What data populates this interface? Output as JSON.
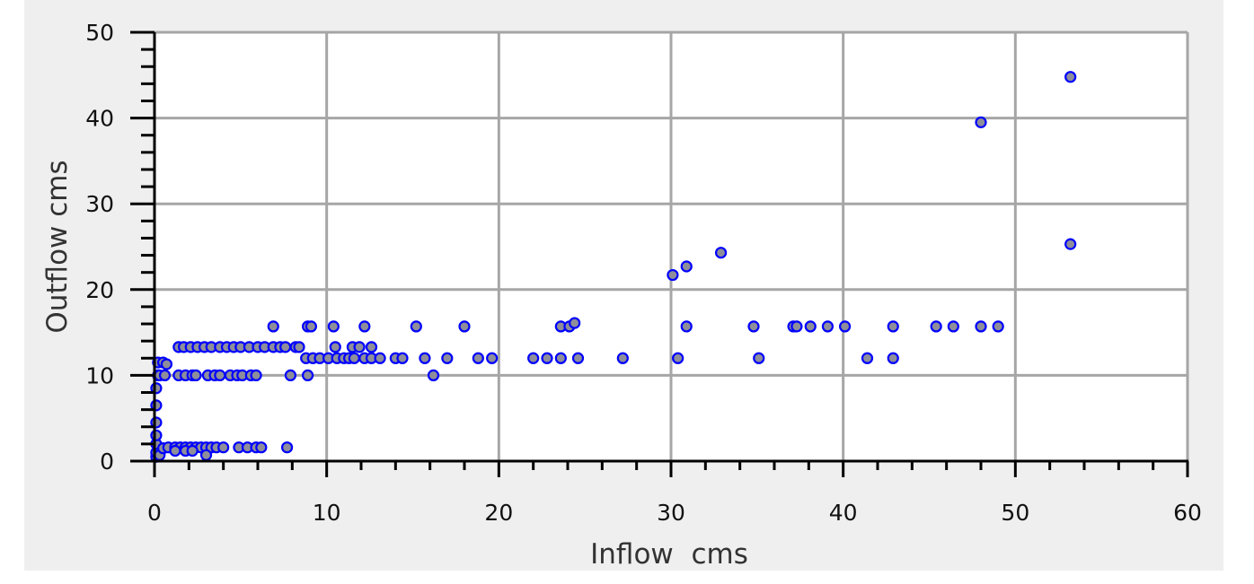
{
  "chart_data": {
    "type": "scatter",
    "title": "",
    "xlabel": "Inflow  cms",
    "ylabel": "Outflow cms",
    "xlim": [
      0,
      60
    ],
    "ylim": [
      0,
      50
    ],
    "x_ticks": [
      "0",
      "10",
      "20",
      "30",
      "40",
      "50",
      "60"
    ],
    "y_ticks": [
      "0",
      "10",
      "20",
      "30",
      "40",
      "50"
    ],
    "x_minor_step": 2,
    "y_minor_step": 2,
    "grid": true,
    "legend": "none",
    "marker_fill": "#8e8e9a",
    "marker_edge": "#0000ff",
    "points": [
      [
        0.1,
        0.5
      ],
      [
        0.1,
        1.0
      ],
      [
        0.1,
        2.0
      ],
      [
        0.1,
        3.0
      ],
      [
        0.1,
        4.5
      ],
      [
        0.1,
        6.5
      ],
      [
        0.1,
        8.5
      ],
      [
        0.2,
        10.0
      ],
      [
        0.2,
        11.5
      ],
      [
        0.5,
        11.5
      ],
      [
        0.7,
        11.3
      ],
      [
        0.3,
        0.7
      ],
      [
        0.5,
        1.5
      ],
      [
        0.8,
        1.6
      ],
      [
        1.2,
        1.6
      ],
      [
        1.5,
        1.6
      ],
      [
        1.8,
        1.6
      ],
      [
        2.1,
        1.6
      ],
      [
        2.4,
        1.6
      ],
      [
        2.7,
        1.6
      ],
      [
        3.0,
        1.6
      ],
      [
        3.3,
        1.6
      ],
      [
        3.6,
        1.6
      ],
      [
        4.0,
        1.6
      ],
      [
        4.9,
        1.6
      ],
      [
        5.4,
        1.6
      ],
      [
        5.9,
        1.6
      ],
      [
        6.2,
        1.6
      ],
      [
        7.7,
        1.6
      ],
      [
        1.2,
        1.2
      ],
      [
        1.8,
        1.2
      ],
      [
        2.2,
        1.2
      ],
      [
        3.0,
        0.7
      ],
      [
        0.3,
        10.0
      ],
      [
        0.6,
        10.0
      ],
      [
        1.4,
        10.0
      ],
      [
        1.8,
        10.0
      ],
      [
        2.2,
        10.0
      ],
      [
        2.4,
        10.0
      ],
      [
        3.1,
        10.0
      ],
      [
        3.5,
        10.0
      ],
      [
        3.8,
        10.0
      ],
      [
        4.4,
        10.0
      ],
      [
        4.8,
        10.0
      ],
      [
        5.1,
        10.0
      ],
      [
        5.6,
        10.0
      ],
      [
        5.9,
        10.0
      ],
      [
        7.9,
        10.0
      ],
      [
        8.9,
        10.0
      ],
      [
        16.2,
        10.0
      ],
      [
        1.4,
        13.3
      ],
      [
        1.7,
        13.3
      ],
      [
        2.1,
        13.3
      ],
      [
        2.5,
        13.3
      ],
      [
        2.9,
        13.3
      ],
      [
        3.3,
        13.3
      ],
      [
        3.8,
        13.3
      ],
      [
        4.2,
        13.3
      ],
      [
        4.6,
        13.3
      ],
      [
        5.0,
        13.3
      ],
      [
        5.5,
        13.3
      ],
      [
        6.0,
        13.3
      ],
      [
        6.4,
        13.3
      ],
      [
        6.9,
        13.3
      ],
      [
        7.3,
        13.3
      ],
      [
        7.6,
        13.3
      ],
      [
        8.2,
        13.3
      ],
      [
        8.4,
        13.3
      ],
      [
        10.5,
        13.3
      ],
      [
        11.5,
        13.3
      ],
      [
        11.9,
        13.3
      ],
      [
        12.6,
        13.3
      ],
      [
        8.8,
        12.0
      ],
      [
        9.2,
        12.0
      ],
      [
        9.6,
        12.0
      ],
      [
        10.1,
        12.0
      ],
      [
        10.6,
        12.0
      ],
      [
        11.0,
        12.0
      ],
      [
        11.3,
        12.0
      ],
      [
        11.6,
        12.0
      ],
      [
        12.2,
        12.0
      ],
      [
        12.6,
        12.0
      ],
      [
        13.1,
        12.0
      ],
      [
        14.0,
        12.0
      ],
      [
        14.4,
        12.0
      ],
      [
        15.7,
        12.0
      ],
      [
        17.0,
        12.0
      ],
      [
        18.8,
        12.0
      ],
      [
        19.6,
        12.0
      ],
      [
        22.0,
        12.0
      ],
      [
        22.8,
        12.0
      ],
      [
        23.6,
        12.0
      ],
      [
        24.6,
        12.0
      ],
      [
        27.2,
        12.0
      ],
      [
        30.4,
        12.0
      ],
      [
        35.1,
        12.0
      ],
      [
        41.4,
        12.0
      ],
      [
        42.9,
        12.0
      ],
      [
        6.9,
        15.7
      ],
      [
        8.9,
        15.7
      ],
      [
        9.1,
        15.7
      ],
      [
        10.4,
        15.7
      ],
      [
        12.2,
        15.7
      ],
      [
        15.2,
        15.7
      ],
      [
        18.0,
        15.7
      ],
      [
        23.6,
        15.7
      ],
      [
        24.1,
        15.7
      ],
      [
        24.4,
        16.1
      ],
      [
        30.9,
        15.7
      ],
      [
        34.8,
        15.7
      ],
      [
        37.1,
        15.7
      ],
      [
        37.3,
        15.7
      ],
      [
        38.1,
        15.7
      ],
      [
        39.1,
        15.7
      ],
      [
        40.1,
        15.7
      ],
      [
        42.9,
        15.7
      ],
      [
        45.4,
        15.7
      ],
      [
        46.4,
        15.7
      ],
      [
        48.0,
        15.7
      ],
      [
        49.0,
        15.7
      ],
      [
        30.1,
        21.7
      ],
      [
        30.9,
        22.7
      ],
      [
        32.9,
        24.3
      ],
      [
        48.0,
        39.5
      ],
      [
        53.2,
        44.8
      ],
      [
        53.2,
        25.3
      ]
    ]
  }
}
